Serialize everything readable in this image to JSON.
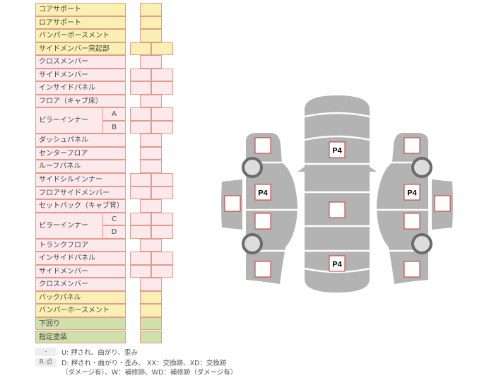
{
  "table": {
    "rows": [
      {
        "label": "コアサポート",
        "color": "yellow",
        "cells": 1
      },
      {
        "label": "ロアサポート",
        "color": "yellow",
        "cells": 1
      },
      {
        "label": "バンパーボースメント",
        "color": "yellow",
        "cells": 1
      },
      {
        "label": "サイドメンバー突起部",
        "color": "yellow",
        "cells": 2
      },
      {
        "label": "クロスメンバー",
        "color": "pink",
        "cells": 1
      },
      {
        "label": "サイドメンバー",
        "color": "pink",
        "cells": 2
      },
      {
        "label": "インサイドパネル",
        "color": "pink",
        "cells": 2
      },
      {
        "label": "フロア（キャブ床）",
        "color": "pink",
        "cells": 1
      },
      {
        "label": "ピラーインナー",
        "sub": "A",
        "color": "pink",
        "cells": 2
      },
      {
        "label": "ピラーインナー",
        "sub": "B",
        "color": "pink",
        "cells": 2
      },
      {
        "label": "ダッシュパネル",
        "color": "pink",
        "cells": 1
      },
      {
        "label": "センターフロア",
        "color": "pink",
        "cells": 1
      },
      {
        "label": "ルーフパネル",
        "color": "pink",
        "cells": 1
      },
      {
        "label": "サイドシルインナー",
        "color": "pink",
        "cells": 2
      },
      {
        "label": "フロアサイドメンバー",
        "color": "pink",
        "cells": 2
      },
      {
        "label": "セットバック（キャブ背）",
        "color": "pink",
        "cells": 1
      },
      {
        "label": "ピラーインナー",
        "sub": "C",
        "color": "pink",
        "cells": 2
      },
      {
        "label": "ピラーインナー",
        "sub": "D",
        "color": "pink",
        "cells": 2
      },
      {
        "label": "トランクフロア",
        "color": "pink",
        "cells": 1
      },
      {
        "label": "インサイドパネル",
        "color": "pink",
        "cells": 2
      },
      {
        "label": "サイドメンバー",
        "color": "pink",
        "cells": 2
      },
      {
        "label": "クロスメンバー",
        "color": "pink",
        "cells": 1
      },
      {
        "label": "バックパネル",
        "color": "yellow",
        "cells": 1
      },
      {
        "label": "バンパーホースメント",
        "color": "yellow",
        "cells": 1
      },
      {
        "label": "下回り",
        "color": "green",
        "cells": 1
      },
      {
        "label": "指定塗装",
        "color": "green",
        "cells": 1
      }
    ]
  },
  "colors": {
    "yellow": "#fbf0b4",
    "pink": "#fbe9ec",
    "green": "#cfe0a8",
    "border": "#e49a8c",
    "car": "#b3b3b3",
    "marker_border": "#c0392b"
  },
  "diagram": {
    "markers": [
      {
        "id": "center-top",
        "label": "P4"
      },
      {
        "id": "center-mid",
        "label": ""
      },
      {
        "id": "center-bottom",
        "label": "P4"
      },
      {
        "id": "left-front",
        "label": ""
      },
      {
        "id": "left-door-front",
        "label": "P4"
      },
      {
        "id": "left-door-rear",
        "label": ""
      },
      {
        "id": "left-rear",
        "label": ""
      },
      {
        "id": "left-mirror",
        "label": ""
      },
      {
        "id": "right-front",
        "label": ""
      },
      {
        "id": "right-door-front",
        "label": "P4"
      },
      {
        "id": "right-door-rear",
        "label": ""
      },
      {
        "id": "right-rear",
        "label": ""
      },
      {
        "id": "right-mirror",
        "label": ""
      }
    ]
  },
  "legend": {
    "dash_key": "-",
    "dash_text": "U: 押され、曲がり、歪み",
    "r_key": "R 点",
    "r_text1": "D: 押され・曲がり・歪み、 XX：交換跡、XD：交換跡",
    "r_text2": "（ダメージ有）、W：補修跡、WD：補修跡（ダメージ有）"
  }
}
